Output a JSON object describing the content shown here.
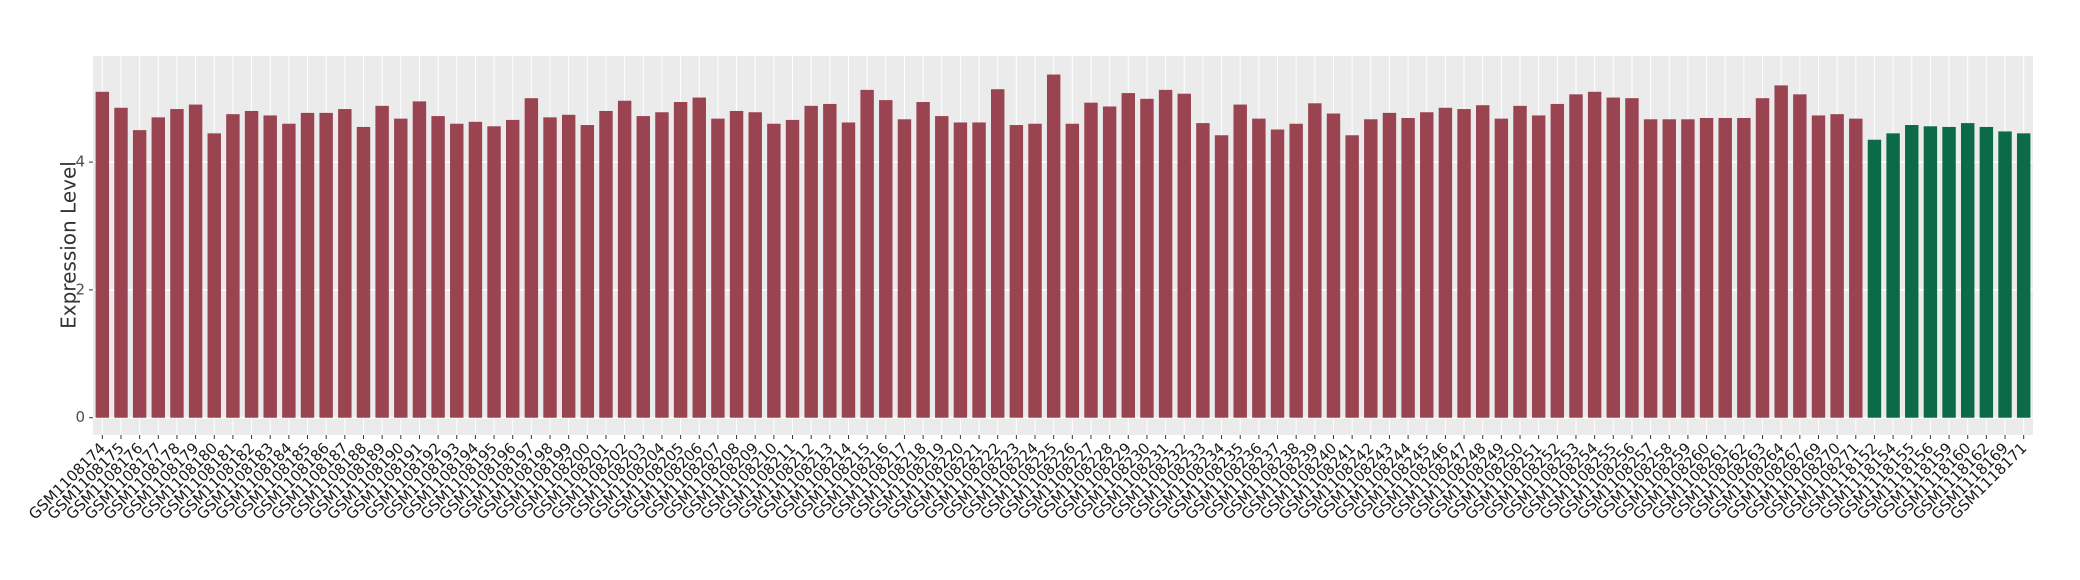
{
  "chart_data": {
    "type": "bar",
    "y_label": "Expression Level",
    "categories": [
      "GSM1108174",
      "GSM1108175",
      "GSM1108176",
      "GSM1108177",
      "GSM1108178",
      "GSM1108179",
      "GSM1108180",
      "GSM1108181",
      "GSM1108182",
      "GSM1108183",
      "GSM1108184",
      "GSM1108185",
      "GSM1108186",
      "GSM1108187",
      "GSM1108188",
      "GSM1108189",
      "GSM1108190",
      "GSM1108191",
      "GSM1108192",
      "GSM1108193",
      "GSM1108194",
      "GSM1108195",
      "GSM1108196",
      "GSM1108197",
      "GSM1108198",
      "GSM1108199",
      "GSM1108200",
      "GSM1108201",
      "GSM1108202",
      "GSM1108203",
      "GSM1108204",
      "GSM1108205",
      "GSM1108206",
      "GSM1108207",
      "GSM1108208",
      "GSM1108209",
      "GSM1108210",
      "GSM1108211",
      "GSM1108212",
      "GSM1108213",
      "GSM1108214",
      "GSM1108215",
      "GSM1108216",
      "GSM1108217",
      "GSM1108218",
      "GSM1108219",
      "GSM1108220",
      "GSM1108221",
      "GSM1108222",
      "GSM1108223",
      "GSM1108224",
      "GSM1108225",
      "GSM1108226",
      "GSM1108227",
      "GSM1108228",
      "GSM1108229",
      "GSM1108230",
      "GSM1108231",
      "GSM1108232",
      "GSM1108233",
      "GSM1108234",
      "GSM1108235",
      "GSM1108236",
      "GSM1108237",
      "GSM1108238",
      "GSM1108239",
      "GSM1108240",
      "GSM1108241",
      "GSM1108242",
      "GSM1108243",
      "GSM1108244",
      "GSM1108245",
      "GSM1108246",
      "GSM1108247",
      "GSM1108248",
      "GSM1108249",
      "GSM1108250",
      "GSM1108251",
      "GSM1108252",
      "GSM1108253",
      "GSM1108254",
      "GSM1108255",
      "GSM1108256",
      "GSM1108257",
      "GSM1108258",
      "GSM1108259",
      "GSM1108260",
      "GSM1108261",
      "GSM1108262",
      "GSM1108263",
      "GSM1108264",
      "GSM1108267",
      "GSM1108269",
      "GSM1108270",
      "GSM1108271",
      "GSM1118152",
      "GSM1118154",
      "GSM1118155",
      "GSM1118156",
      "GSM1118159",
      "GSM1118160",
      "GSM1118162",
      "GSM1118169",
      "GSM1118171"
    ],
    "values": [
      5.1,
      4.85,
      4.5,
      4.7,
      4.83,
      4.9,
      4.45,
      4.75,
      4.8,
      4.73,
      4.6,
      4.77,
      4.77,
      4.83,
      4.55,
      4.88,
      4.68,
      4.95,
      4.72,
      4.6,
      4.63,
      4.56,
      4.66,
      5.0,
      4.7,
      4.74,
      4.58,
      4.8,
      4.96,
      4.72,
      4.78,
      4.94,
      5.01,
      4.68,
      4.8,
      4.78,
      4.6,
      4.66,
      4.88,
      4.91,
      4.62,
      5.13,
      4.97,
      4.67,
      4.94,
      4.72,
      4.62,
      4.62,
      5.14,
      4.58,
      4.6,
      5.37,
      4.6,
      4.93,
      4.87,
      5.08,
      4.99,
      5.13,
      5.07,
      4.61,
      4.42,
      4.9,
      4.68,
      4.51,
      4.6,
      4.92,
      4.76,
      4.42,
      4.67,
      4.77,
      4.69,
      4.78,
      4.85,
      4.83,
      4.89,
      4.68,
      4.88,
      4.73,
      4.91,
      5.06,
      5.1,
      5.01,
      5.0,
      4.67,
      4.67,
      4.67,
      4.69,
      4.69,
      4.69,
      5.0,
      5.2,
      5.06,
      4.73,
      4.75,
      4.68,
      4.35,
      4.45,
      4.58,
      4.56,
      4.55,
      4.61,
      4.55,
      4.48,
      4.45
    ],
    "colors": [
      "#9a4452",
      "#9a4452",
      "#9a4452",
      "#9a4452",
      "#9a4452",
      "#9a4452",
      "#9a4452",
      "#9a4452",
      "#9a4452",
      "#9a4452",
      "#9a4452",
      "#9a4452",
      "#9a4452",
      "#9a4452",
      "#9a4452",
      "#9a4452",
      "#9a4452",
      "#9a4452",
      "#9a4452",
      "#9a4452",
      "#9a4452",
      "#9a4452",
      "#9a4452",
      "#9a4452",
      "#9a4452",
      "#9a4452",
      "#9a4452",
      "#9a4452",
      "#9a4452",
      "#9a4452",
      "#9a4452",
      "#9a4452",
      "#9a4452",
      "#9a4452",
      "#9a4452",
      "#9a4452",
      "#9a4452",
      "#9a4452",
      "#9a4452",
      "#9a4452",
      "#9a4452",
      "#9a4452",
      "#9a4452",
      "#9a4452",
      "#9a4452",
      "#9a4452",
      "#9a4452",
      "#9a4452",
      "#9a4452",
      "#9a4452",
      "#9a4452",
      "#9a4452",
      "#9a4452",
      "#9a4452",
      "#9a4452",
      "#9a4452",
      "#9a4452",
      "#9a4452",
      "#9a4452",
      "#9a4452",
      "#9a4452",
      "#9a4452",
      "#9a4452",
      "#9a4452",
      "#9a4452",
      "#9a4452",
      "#9a4452",
      "#9a4452",
      "#9a4452",
      "#9a4452",
      "#9a4452",
      "#9a4452",
      "#9a4452",
      "#9a4452",
      "#9a4452",
      "#9a4452",
      "#9a4452",
      "#9a4452",
      "#9a4452",
      "#9a4452",
      "#9a4452",
      "#9a4452",
      "#9a4452",
      "#9a4452",
      "#9a4452",
      "#9a4452",
      "#9a4452",
      "#9a4452",
      "#9a4452",
      "#9a4452",
      "#9a4452",
      "#9a4452",
      "#9a4452",
      "#9a4452",
      "#9a4452",
      "#0b6b47",
      "#0b6b47",
      "#0b6b47",
      "#0b6b47",
      "#0b6b47",
      "#0b6b47",
      "#0b6b47",
      "#0b6b47",
      "#0b6b47"
    ],
    "ylim": [
      -0.27,
      5.66
    ],
    "yticks": [
      0,
      2,
      4
    ],
    "grid": true
  }
}
